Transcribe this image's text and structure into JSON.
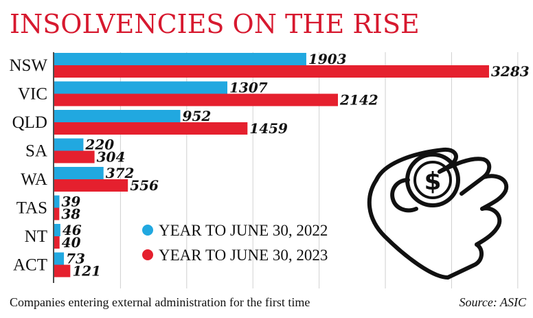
{
  "title": "INSOLVENCIES ON THE RISE",
  "colors": {
    "series_2022": "#21a8e0",
    "series_2023": "#e5202e",
    "title": "#d7192f",
    "icon": "#111111"
  },
  "icon": "hand-holding-dollar-icon",
  "footer": {
    "note": "Companies entering external administration for the first time",
    "source": "Source: ASIC"
  },
  "chart_data": {
    "type": "bar",
    "orientation": "horizontal",
    "title": "INSOLVENCIES ON THE RISE",
    "categories": [
      "NSW",
      "VIC",
      "QLD",
      "SA",
      "WA",
      "TAS",
      "NT",
      "ACT"
    ],
    "series": [
      {
        "name": "YEAR TO JUNE 30, 2022",
        "color": "#21a8e0",
        "values": [
          1903,
          1307,
          952,
          220,
          372,
          39,
          46,
          73
        ]
      },
      {
        "name": "YEAR TO JUNE 30, 2023",
        "color": "#e5202e",
        "values": [
          3283,
          2142,
          1459,
          304,
          556,
          38,
          40,
          121
        ]
      }
    ],
    "xlim": [
      0,
      3500
    ],
    "grid": true,
    "legend_position": "bottom-center"
  }
}
